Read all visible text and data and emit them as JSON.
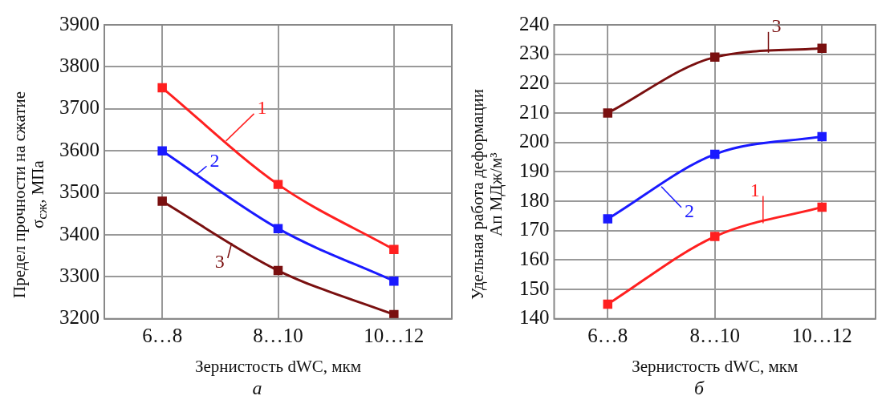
{
  "chart_data": [
    {
      "type": "line",
      "categories": [
        "6…8",
        "8…10",
        "10…12"
      ],
      "xlabel": "Зернистость dWC, мкм",
      "ylabel": "Предел прочности на сжатие σ$_{сж}$, МПа",
      "ylim": [
        3200,
        3900
      ],
      "yticks": [
        3200,
        3300,
        3400,
        3500,
        3600,
        3700,
        3800,
        3900
      ],
      "grid": true,
      "marker": "square",
      "line_style": "solid",
      "annotations": [
        "а"
      ],
      "series": [
        {
          "name": "1",
          "color": "#ff2020",
          "values": [
            3750,
            3520,
            3365
          ]
        },
        {
          "name": "2",
          "color": "#1a1aff",
          "values": [
            3600,
            3415,
            3290
          ]
        },
        {
          "name": "3",
          "color": "#7a1010",
          "values": [
            3480,
            3315,
            3210
          ]
        }
      ]
    },
    {
      "type": "line",
      "categories": [
        "6…8",
        "8…10",
        "10…12"
      ],
      "xlabel": "Зернистость dWC, мкм",
      "ylabel": "Удельная работа деформации Ап МДж/м³",
      "ylim": [
        140,
        240
      ],
      "yticks": [
        140,
        150,
        160,
        170,
        180,
        190,
        200,
        210,
        220,
        230,
        240
      ],
      "grid": true,
      "marker": "square",
      "line_style": "solid",
      "annotations": [
        "б"
      ],
      "series": [
        {
          "name": "1",
          "color": "#ff2020",
          "values": [
            145,
            168,
            178
          ]
        },
        {
          "name": "2",
          "color": "#1a1aff",
          "values": [
            174,
            196,
            202
          ]
        },
        {
          "name": "3",
          "color": "#7a1010",
          "values": [
            210,
            229,
            232
          ]
        }
      ]
    }
  ]
}
